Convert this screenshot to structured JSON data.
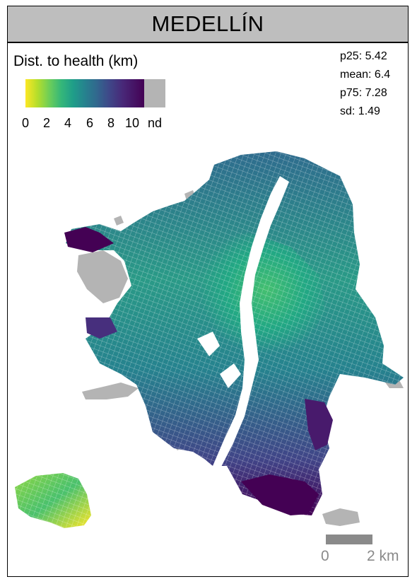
{
  "title": "MEDELLÍN",
  "legend": {
    "title": "Dist. to health (km)",
    "ticks": [
      "0",
      "2",
      "4",
      "6",
      "8",
      "10"
    ],
    "nd_label": "nd",
    "colors": {
      "low": "#fde725",
      "mid": "#21918c",
      "high": "#440154",
      "nodata": "#b4b4b4"
    }
  },
  "stats": {
    "p25": "p25: 5.42",
    "mean": "mean: 6.4",
    "p75": "p75: 7.28",
    "sd": "sd: 1.49"
  },
  "scale": {
    "start": "0",
    "end": "2 km"
  },
  "icons": [
    "map-frame"
  ]
}
